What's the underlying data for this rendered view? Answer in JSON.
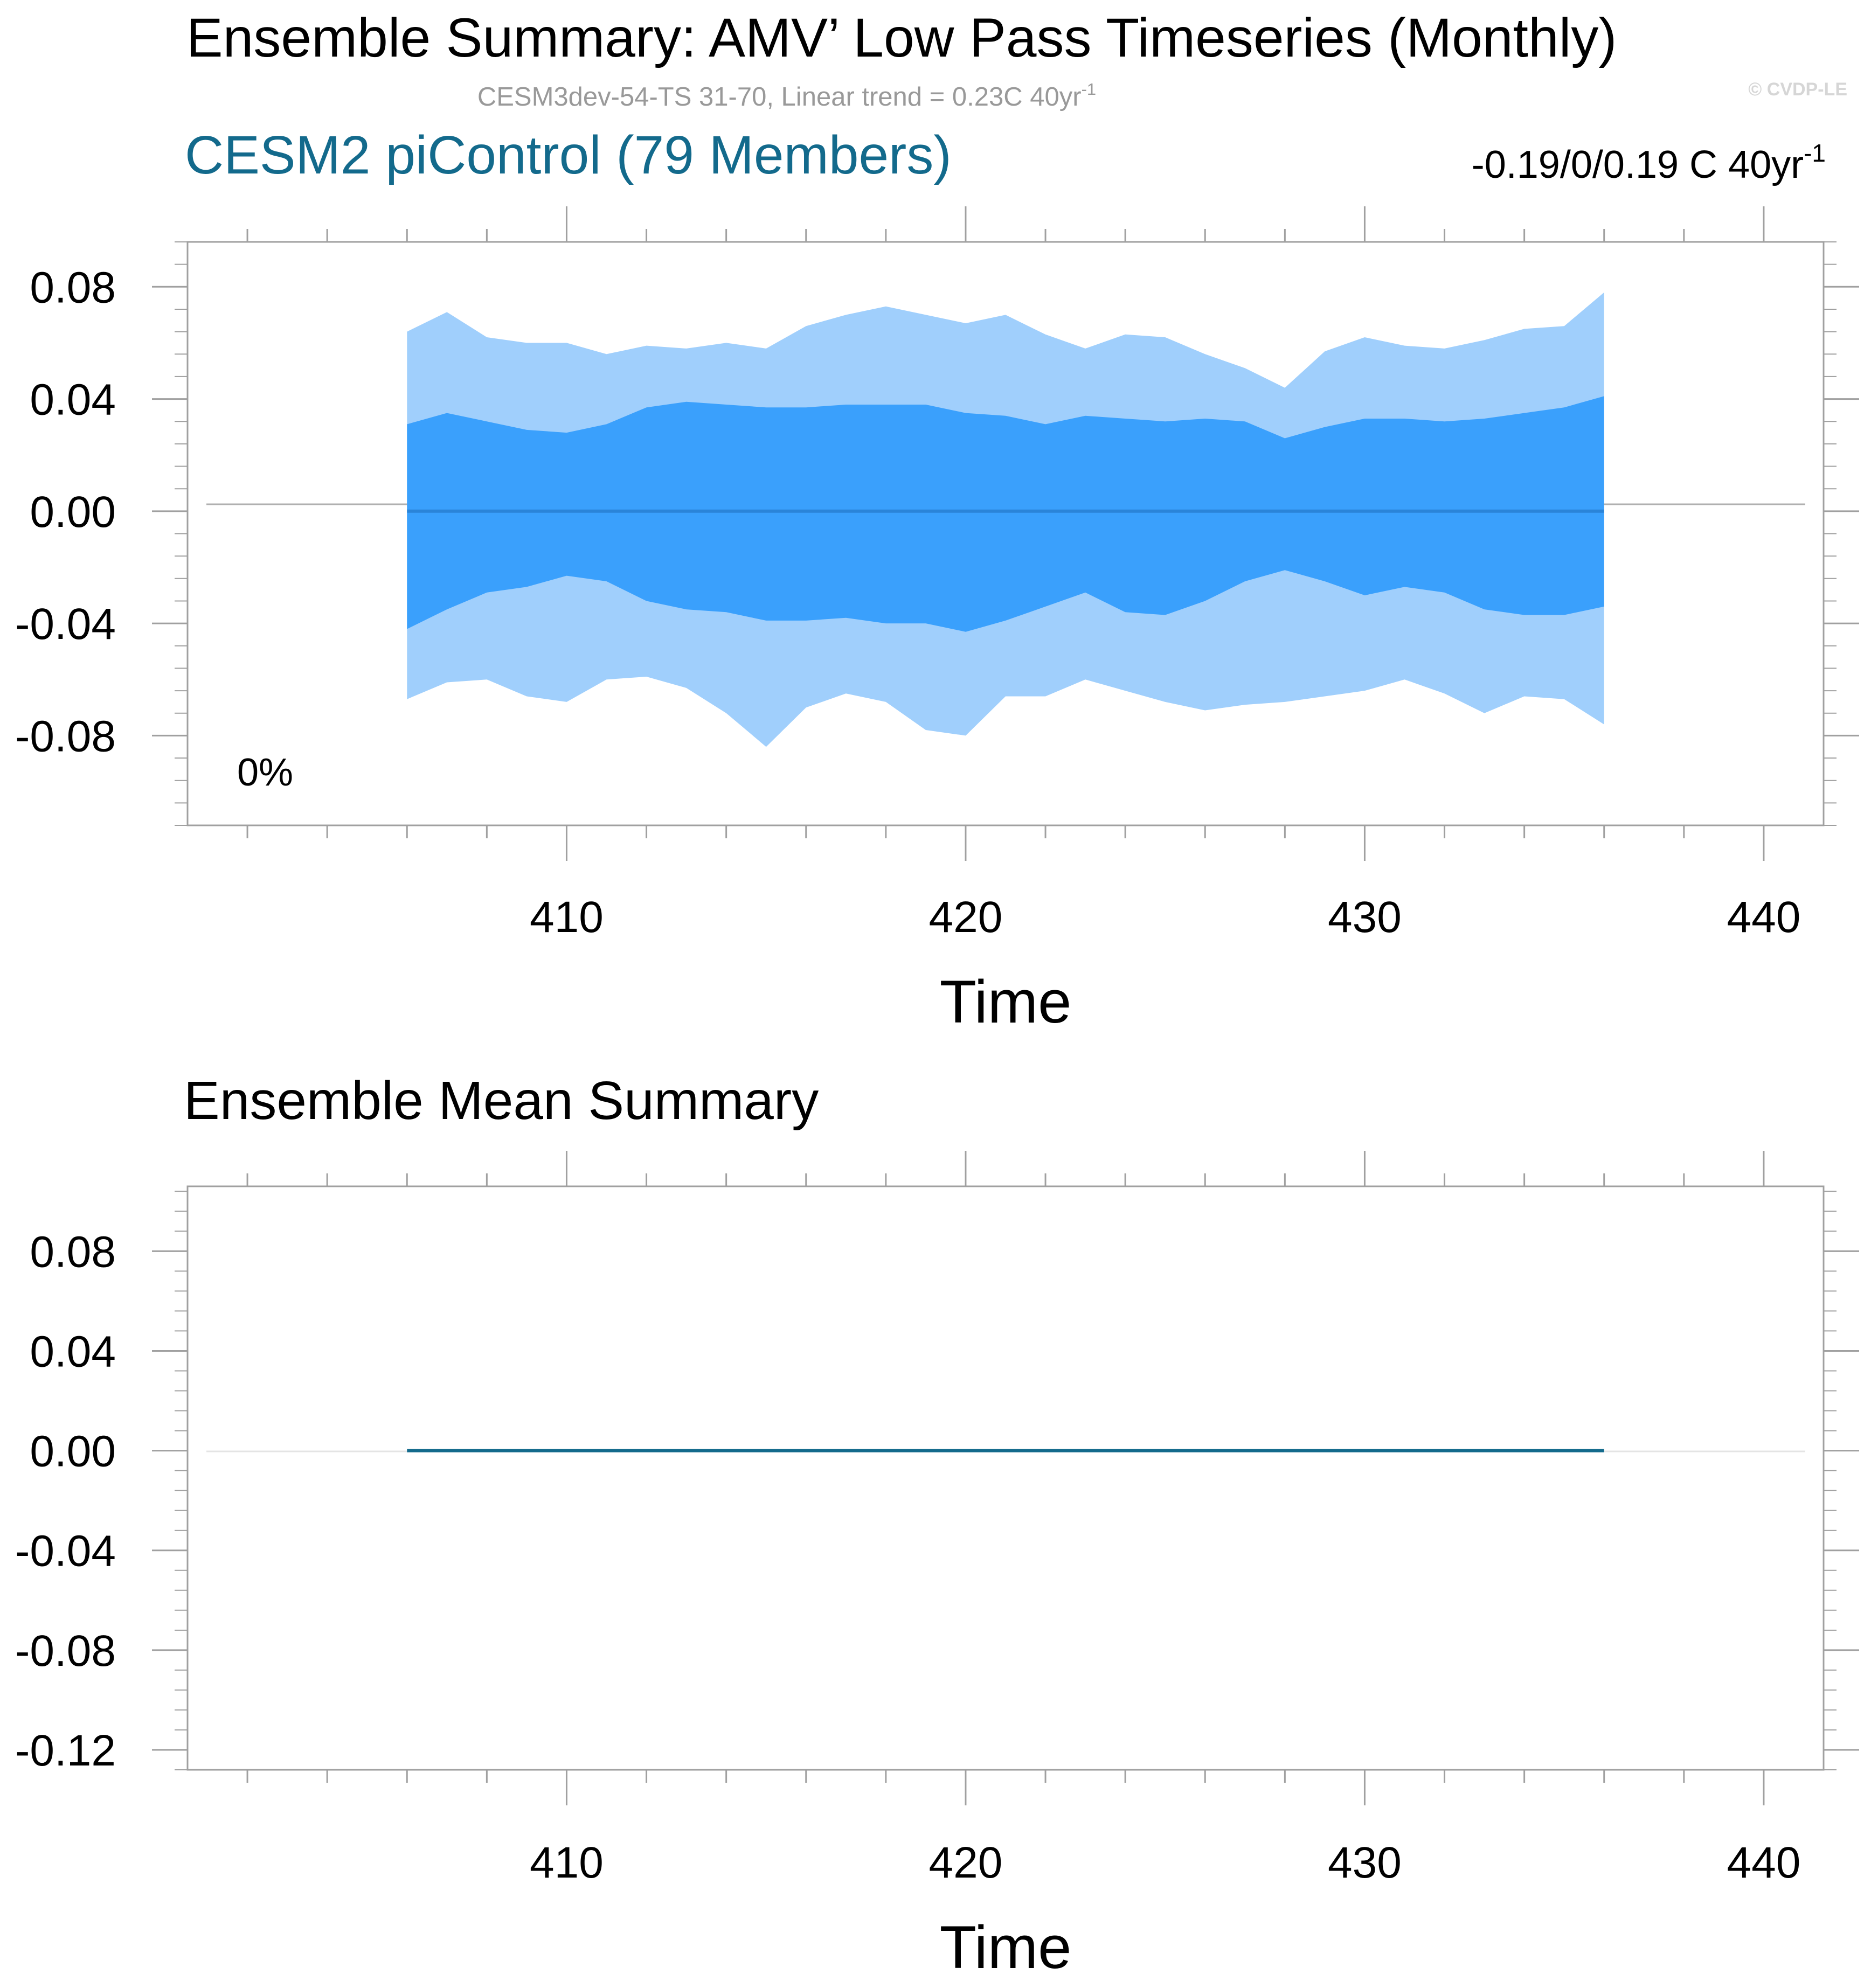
{
  "title": "Ensemble Summary: AMV’ Low Pass Timeseries (Monthly)",
  "subtitle": {
    "text": "CESM3dev-54-TS 31-70, Linear trend = 0.23C 40yr",
    "superscript": "-1"
  },
  "watermark": "© CVDP-LE",
  "colors": {
    "outer_band": "#a0cffc",
    "inner_band": "#3aa0fc",
    "mean_line_top": "#2a84d8",
    "mean_line_bottom": "#136a8c",
    "title_teal": "#136a8c",
    "frame": "#a0a0a0",
    "subtitle": "#999999"
  },
  "chart_data": [
    {
      "type": "area",
      "panel_title": "CESM2 piControl (79 Members)",
      "right_label": {
        "text": "-0.19/0/0.19 C 40yr",
        "superscript": "-1"
      },
      "corner_label": "0%",
      "xlabel": "Time",
      "ylabel": "",
      "xlim": [
        400.5,
        441.5
      ],
      "ylim": [
        -0.112,
        0.096
      ],
      "xticks": [
        410,
        420,
        430,
        440
      ],
      "xtick_labels": [
        "410",
        "420",
        "430",
        "440"
      ],
      "yticks": [
        -0.08,
        -0.04,
        0.0,
        0.04,
        0.08
      ],
      "ytick_labels": [
        "-0.08",
        "-0.04",
        "0.00",
        "0.04",
        "0.08"
      ],
      "x": [
        406,
        407,
        408,
        409,
        410,
        411,
        412,
        413,
        414,
        415,
        416,
        417,
        418,
        419,
        420,
        421,
        422,
        423,
        424,
        425,
        426,
        427,
        428,
        429,
        430,
        431,
        432,
        433,
        434,
        435,
        436
      ],
      "series": [
        {
          "values": [
            0.064,
            0.071,
            0.062,
            0.06,
            0.06,
            0.056,
            0.059,
            0.058,
            0.06,
            0.058,
            0.066,
            0.07,
            0.073,
            0.07,
            0.067,
            0.07,
            0.063,
            0.058,
            0.063,
            0.062,
            0.056,
            0.051,
            0.044,
            0.057,
            0.062,
            0.059,
            0.058,
            0.061,
            0.065,
            0.066,
            0.078
          ]
        },
        {
          "values": [
            0.031,
            0.035,
            0.032,
            0.029,
            0.028,
            0.031,
            0.037,
            0.039,
            0.038,
            0.037,
            0.037,
            0.038,
            0.038,
            0.038,
            0.035,
            0.034,
            0.031,
            0.034,
            0.033,
            0.032,
            0.033,
            0.032,
            0.026,
            0.03,
            0.033,
            0.033,
            0.032,
            0.033,
            0.035,
            0.037,
            0.041
          ]
        },
        {
          "values": [
            0.0,
            0.0,
            0.0,
            0.0,
            0.0,
            0.0,
            0.0,
            0.0,
            0.0,
            0.0,
            0.0,
            0.0,
            0.0,
            0.0,
            0.0,
            0.0,
            0.0,
            0.0,
            0.0,
            0.0,
            0.0,
            0.0,
            0.0,
            0.0,
            0.0,
            0.0,
            0.0,
            0.0,
            0.0,
            0.0,
            0.0
          ]
        },
        {
          "values": [
            -0.042,
            -0.035,
            -0.029,
            -0.027,
            -0.023,
            -0.025,
            -0.032,
            -0.035,
            -0.036,
            -0.039,
            -0.039,
            -0.038,
            -0.04,
            -0.04,
            -0.043,
            -0.039,
            -0.034,
            -0.029,
            -0.036,
            -0.037,
            -0.032,
            -0.025,
            -0.021,
            -0.025,
            -0.03,
            -0.027,
            -0.029,
            -0.035,
            -0.037,
            -0.037,
            -0.034
          ]
        },
        {
          "values": [
            -0.067,
            -0.061,
            -0.06,
            -0.066,
            -0.068,
            -0.06,
            -0.059,
            -0.063,
            -0.072,
            -0.084,
            -0.07,
            -0.065,
            -0.068,
            -0.078,
            -0.08,
            -0.066,
            -0.066,
            -0.06,
            -0.064,
            -0.068,
            -0.071,
            -0.069,
            -0.068,
            -0.066,
            -0.064,
            -0.06,
            -0.065,
            -0.072,
            -0.066,
            -0.067,
            -0.076
          ]
        }
      ]
    },
    {
      "type": "line",
      "panel_title": "Ensemble Mean Summary",
      "xlabel": "Time",
      "ylabel": "",
      "xlim": [
        400.5,
        441.5
      ],
      "ylim": [
        -0.128,
        0.106
      ],
      "xticks": [
        410,
        420,
        430,
        440
      ],
      "xtick_labels": [
        "410",
        "420",
        "430",
        "440"
      ],
      "yticks": [
        -0.12,
        -0.08,
        -0.04,
        0.0,
        0.04,
        0.08
      ],
      "ytick_labels": [
        "-0.12",
        "-0.08",
        "-0.04",
        "0.00",
        "0.04",
        "0.08"
      ],
      "x": [
        406,
        436
      ],
      "series": [
        {
          "values": [
            0.0,
            0.0
          ]
        }
      ]
    }
  ]
}
